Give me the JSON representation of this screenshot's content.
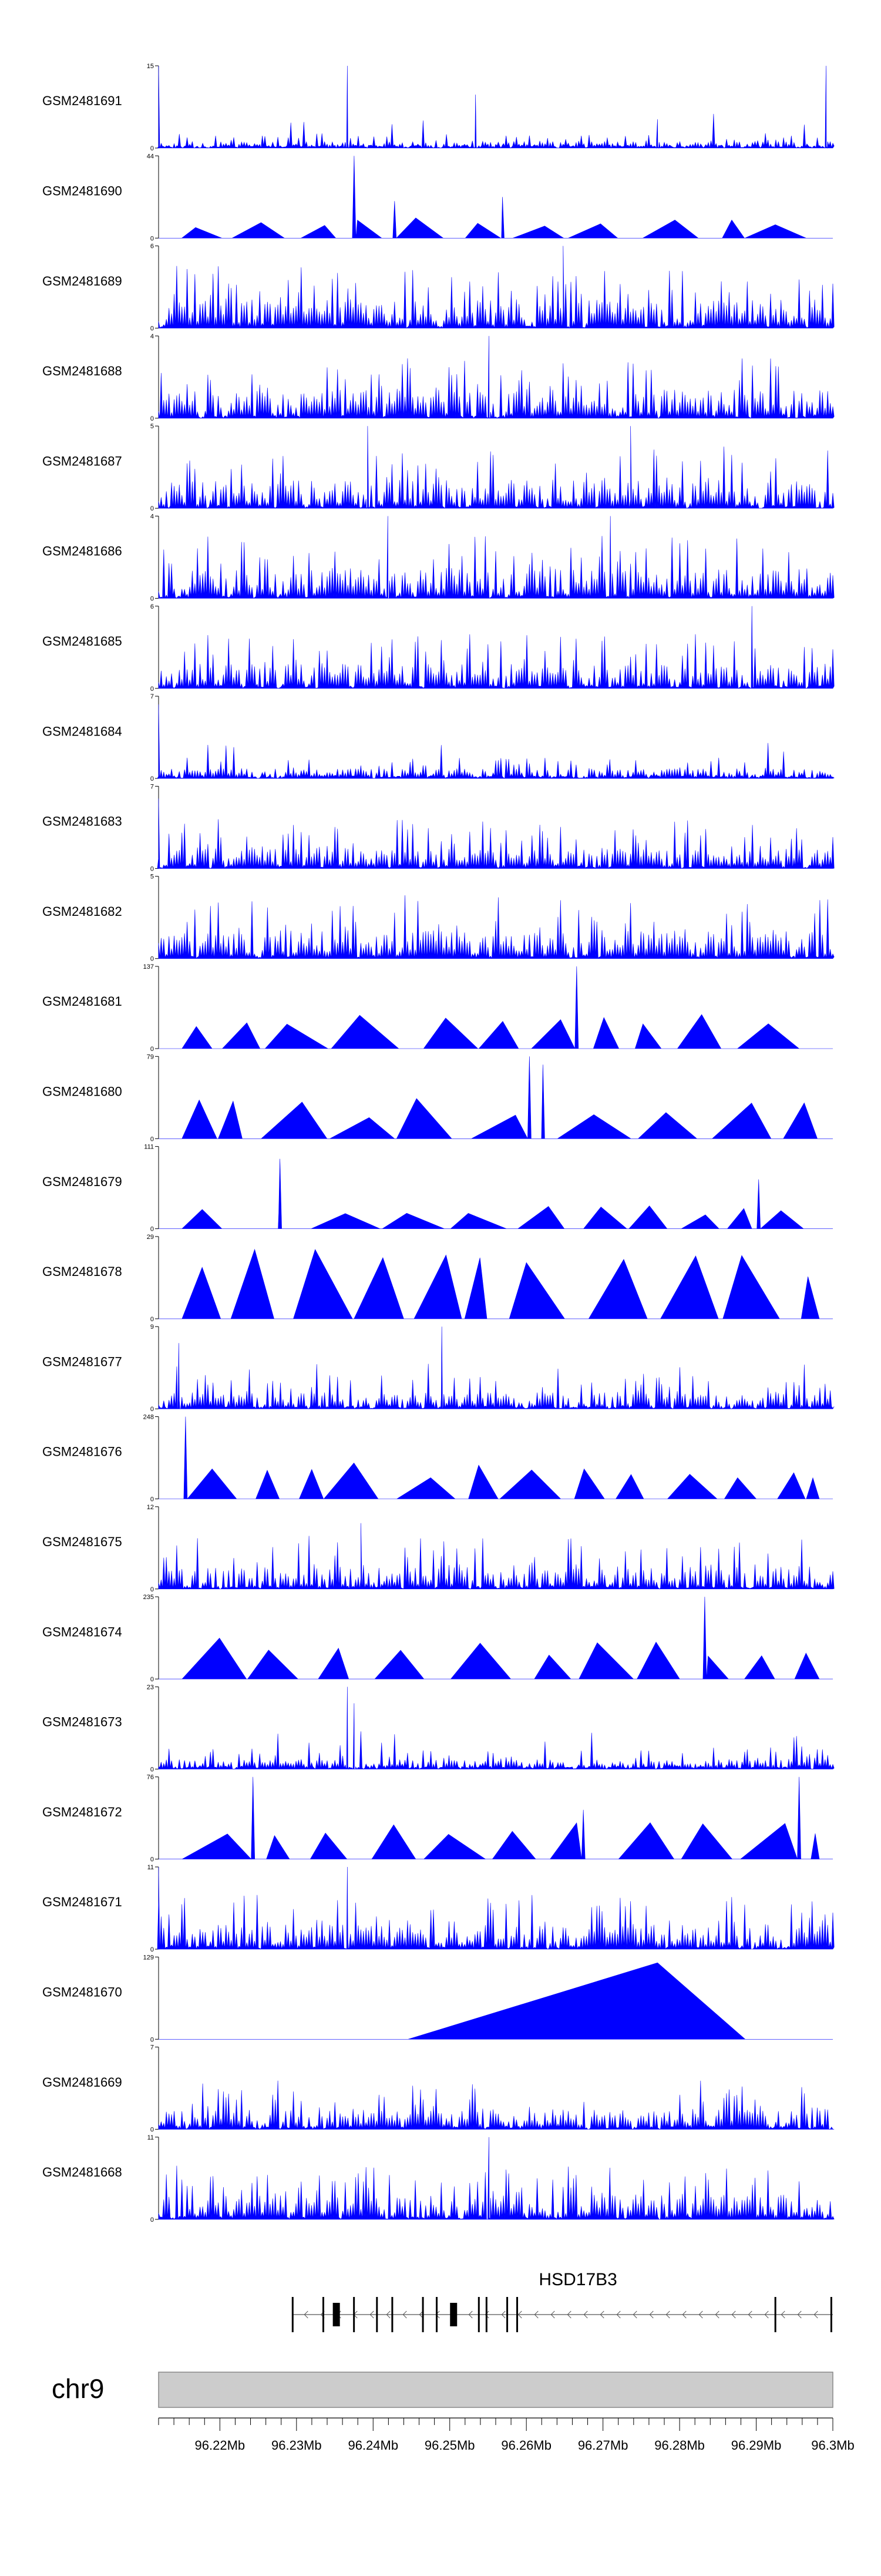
{
  "chart_data": {
    "type": "area",
    "title": "",
    "tracks": [
      {
        "name": "GSM2481691",
        "ymin": 0,
        "ymax": 15,
        "pattern": "dense",
        "seed": 11,
        "base": 0.08,
        "spikes": [
          [
            0.0,
            1.0
          ],
          [
            0.28,
            1.0
          ],
          [
            0.47,
            0.65
          ],
          [
            0.74,
            0.35
          ],
          [
            0.99,
            1.0
          ]
        ]
      },
      {
        "name": "GSM2481690",
        "ymin": 0,
        "ymax": 44,
        "pattern": "sparse",
        "seed": 12,
        "base": 0.25,
        "spikes": [
          [
            0.29,
            1.0
          ],
          [
            0.35,
            0.45
          ],
          [
            0.51,
            0.5
          ]
        ]
      },
      {
        "name": "GSM2481689",
        "ymin": 0,
        "ymax": 6,
        "pattern": "dense",
        "seed": 13,
        "base": 0.35,
        "spikes": [
          [
            0.6,
            1.0
          ]
        ]
      },
      {
        "name": "GSM2481688",
        "ymin": 0,
        "ymax": 4,
        "pattern": "dense",
        "seed": 14,
        "base": 0.35,
        "spikes": [
          [
            0.49,
            1.0
          ]
        ]
      },
      {
        "name": "GSM2481687",
        "ymin": 0,
        "ymax": 5,
        "pattern": "dense",
        "seed": 15,
        "base": 0.35,
        "spikes": [
          [
            0.31,
            1.0
          ],
          [
            0.7,
            1.0
          ]
        ]
      },
      {
        "name": "GSM2481686",
        "ymin": 0,
        "ymax": 4,
        "pattern": "dense",
        "seed": 16,
        "base": 0.35,
        "spikes": [
          [
            0.34,
            1.0
          ],
          [
            0.67,
            1.0
          ]
        ]
      },
      {
        "name": "GSM2481685",
        "ymin": 0,
        "ymax": 6,
        "pattern": "dense",
        "seed": 17,
        "base": 0.3,
        "spikes": [
          [
            0.88,
            1.0
          ]
        ]
      },
      {
        "name": "GSM2481684",
        "ymin": 0,
        "ymax": 7,
        "pattern": "dense",
        "seed": 18,
        "base": 0.12,
        "spikes": [
          [
            0.0,
            0.9
          ]
        ]
      },
      {
        "name": "GSM2481683",
        "ymin": 0,
        "ymax": 7,
        "pattern": "dense",
        "seed": 19,
        "base": 0.25,
        "spikes": [
          [
            0.0,
            0.85
          ]
        ]
      },
      {
        "name": "GSM2481682",
        "ymin": 0,
        "ymax": 5,
        "pattern": "dense",
        "seed": 20,
        "base": 0.35,
        "spikes": []
      },
      {
        "name": "GSM2481681",
        "ymin": 0,
        "ymax": 137,
        "pattern": "sparse",
        "seed": 21,
        "base": 0.45,
        "spikes": [
          [
            0.62,
            1.0
          ]
        ]
      },
      {
        "name": "GSM2481680",
        "ymin": 0,
        "ymax": 79,
        "pattern": "sparse",
        "seed": 22,
        "base": 0.5,
        "spikes": [
          [
            0.55,
            1.0
          ],
          [
            0.57,
            0.9
          ]
        ]
      },
      {
        "name": "GSM2481679",
        "ymin": 0,
        "ymax": 111,
        "pattern": "sparse",
        "seed": 23,
        "base": 0.3,
        "spikes": [
          [
            0.18,
            0.85
          ],
          [
            0.89,
            0.6
          ]
        ]
      },
      {
        "name": "GSM2481678",
        "ymin": 0,
        "ymax": 29,
        "pattern": "sparse",
        "seed": 24,
        "base": 1.0,
        "spikes": []
      },
      {
        "name": "GSM2481677",
        "ymin": 0,
        "ymax": 9,
        "pattern": "dense",
        "seed": 25,
        "base": 0.2,
        "spikes": [
          [
            0.42,
            1.0
          ],
          [
            0.03,
            0.8
          ]
        ]
      },
      {
        "name": "GSM2481676",
        "ymin": 0,
        "ymax": 248,
        "pattern": "sparse",
        "seed": 26,
        "base": 0.45,
        "spikes": [
          [
            0.04,
            1.0
          ]
        ]
      },
      {
        "name": "GSM2481675",
        "ymin": 0,
        "ymax": 12,
        "pattern": "dense",
        "seed": 27,
        "base": 0.3,
        "spikes": [
          [
            0.3,
            0.8
          ]
        ]
      },
      {
        "name": "GSM2481674",
        "ymin": 0,
        "ymax": 235,
        "pattern": "sparse",
        "seed": 28,
        "base": 0.5,
        "spikes": [
          [
            0.81,
            1.0
          ]
        ]
      },
      {
        "name": "GSM2481673",
        "ymin": 0,
        "ymax": 23,
        "pattern": "dense",
        "seed": 29,
        "base": 0.12,
        "spikes": [
          [
            0.28,
            1.0
          ],
          [
            0.29,
            0.8
          ]
        ]
      },
      {
        "name": "GSM2481672",
        "ymin": 0,
        "ymax": 76,
        "pattern": "sparse",
        "seed": 30,
        "base": 0.45,
        "spikes": [
          [
            0.14,
            1.0
          ],
          [
            0.63,
            0.6
          ],
          [
            0.95,
            1.0
          ]
        ]
      },
      {
        "name": "GSM2481671",
        "ymin": 0,
        "ymax": 11,
        "pattern": "dense",
        "seed": 31,
        "base": 0.3,
        "spikes": [
          [
            0.0,
            1.0
          ],
          [
            0.28,
            1.0
          ]
        ]
      },
      {
        "name": "GSM2481670",
        "ymin": 0,
        "ymax": 129,
        "pattern": "single",
        "seed": 32,
        "base": 1.0,
        "spikes": []
      },
      {
        "name": "GSM2481669",
        "ymin": 0,
        "ymax": 7,
        "pattern": "dense",
        "seed": 33,
        "base": 0.25,
        "spikes": []
      },
      {
        "name": "GSM2481668",
        "ymin": 0,
        "ymax": 11,
        "pattern": "dense",
        "seed": 34,
        "base": 0.3,
        "spikes": [
          [
            0.49,
            1.0
          ]
        ]
      }
    ],
    "x": {
      "chromosome": "chr9",
      "range_mb": [
        96.212,
        96.3
      ],
      "ticks": [
        "96.22Mb",
        "96.23Mb",
        "96.24Mb",
        "96.25Mb",
        "96.26Mb",
        "96.27Mb",
        "96.28Mb",
        "96.29Mb",
        "96.3Mb"
      ],
      "tick_values": [
        96.22,
        96.23,
        96.24,
        96.25,
        96.26,
        96.27,
        96.28,
        96.29,
        96.3
      ]
    },
    "gene": {
      "name": "HSD17B3",
      "start_mb": 96.2295,
      "end_mb": 96.3,
      "strand": "-",
      "exons_mb": [
        96.2295,
        96.2335,
        96.2352,
        96.2375,
        96.2405,
        96.2425,
        96.2465,
        96.2483,
        96.2505,
        96.2538,
        96.2548,
        96.2575,
        96.2588,
        96.2925,
        96.2998
      ]
    },
    "colors": {
      "signal": "#0000ff",
      "axis": "#000000",
      "chrom_fill": "#cccccc",
      "chrom_stroke": "#888888"
    }
  }
}
